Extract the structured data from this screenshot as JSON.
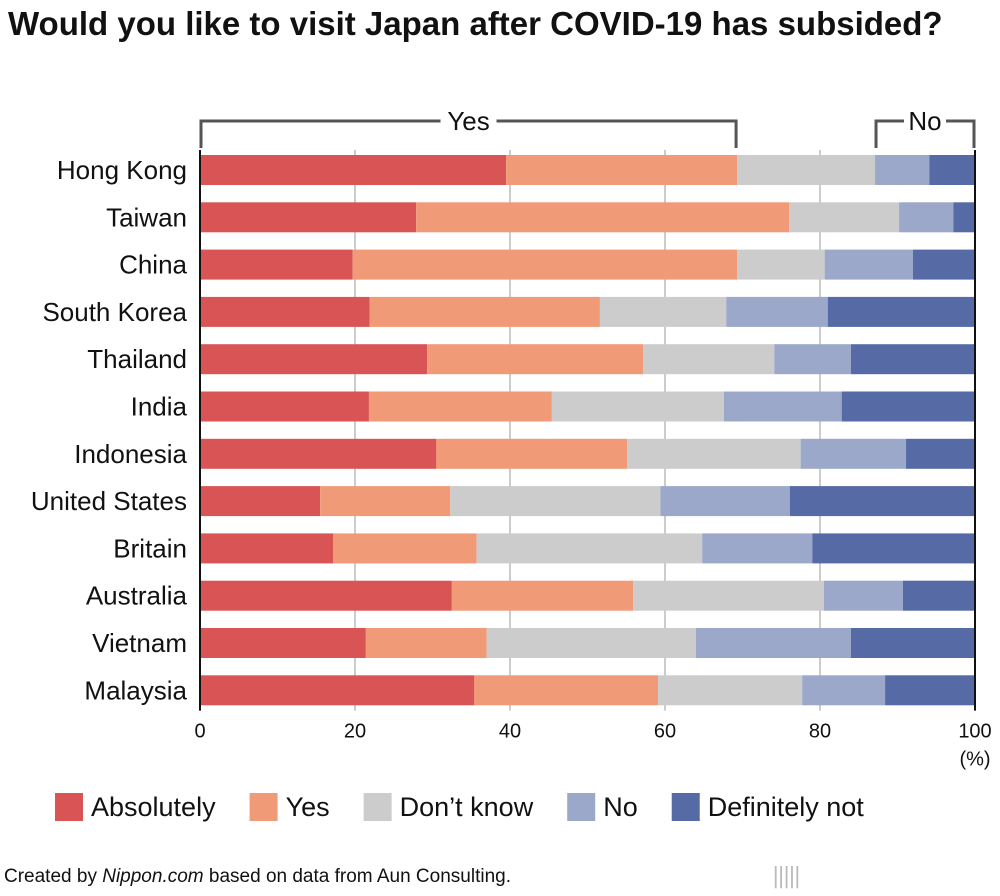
{
  "title": "Would you like to visit Japan after COVID-19 has subsided?",
  "footer": {
    "prefix": "Created by ",
    "source_name": "Nippon.com",
    "suffix": " based on data from Aun Consulting."
  },
  "logo": {
    "name": "nippon",
    "dot": ".",
    "tld": "com"
  },
  "chart_data": {
    "type": "bar",
    "orientation": "horizontal-stacked",
    "xlim": [
      0,
      100
    ],
    "xticks": [
      "0",
      "20",
      "40",
      "60",
      "80",
      "100"
    ],
    "xunit": "(%)",
    "grid": true,
    "legend_position": "bottom",
    "brackets": [
      {
        "label": "Yes",
        "from": 0,
        "to": 69.3
      },
      {
        "label": "No",
        "from": 87.1,
        "to": 100
      }
    ],
    "categories": [
      "Hong Kong",
      "Taiwan",
      "China",
      "South Korea",
      "Thailand",
      "India",
      "Indonesia",
      "United States",
      "Britain",
      "Australia",
      "Vietnam",
      "Malaysia"
    ],
    "series": [
      {
        "name": "Absolutely",
        "color": "#d95555",
        "values": [
          39.5,
          27.9,
          19.7,
          21.9,
          29.3,
          21.8,
          30.5,
          15.5,
          17.2,
          32.5,
          21.4,
          35.4
        ]
      },
      {
        "name": "Yes",
        "color": "#f19a78",
        "values": [
          29.8,
          48.1,
          49.6,
          29.7,
          27.9,
          23.6,
          24.6,
          16.8,
          18.5,
          23.4,
          15.6,
          23.7
        ]
      },
      {
        "name": "Don’t know",
        "color": "#cccccc",
        "values": [
          17.8,
          14.2,
          11.3,
          16.3,
          16.9,
          22.2,
          22.4,
          27.1,
          29.1,
          24.6,
          27.0,
          18.6
        ]
      },
      {
        "name": "No",
        "color": "#9ba8ca",
        "values": [
          7.0,
          7.0,
          11.4,
          13.1,
          9.9,
          15.2,
          13.6,
          16.7,
          14.2,
          10.2,
          20.0,
          10.7
        ]
      },
      {
        "name": "Definitely not",
        "color": "#566aa6",
        "values": [
          5.9,
          2.8,
          8.0,
          19.0,
          16.0,
          17.2,
          8.9,
          23.9,
          21.0,
          9.3,
          16.0,
          11.6
        ]
      }
    ]
  }
}
